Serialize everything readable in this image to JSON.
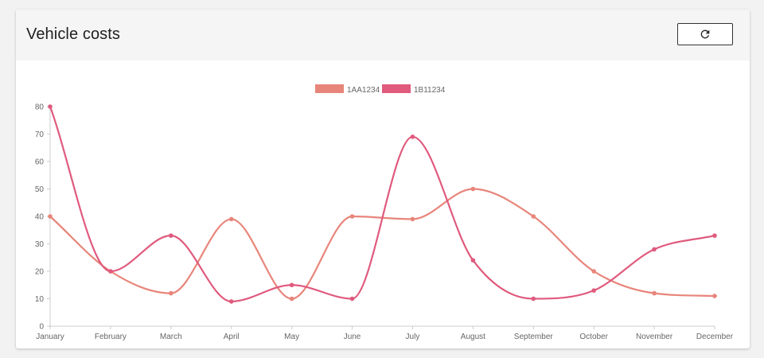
{
  "header": {
    "title": "Vehicle costs",
    "refresh_icon": "refresh-icon"
  },
  "colors": {
    "series_1": "#e8857a",
    "series_2": "#e05a7d",
    "axis": "#cccccc",
    "tick_text": "#666666"
  },
  "chart_data": {
    "type": "line",
    "categories": [
      "January",
      "February",
      "March",
      "April",
      "May",
      "June",
      "July",
      "August",
      "September",
      "October",
      "November",
      "December"
    ],
    "series": [
      {
        "name": "1AA1234",
        "values": [
          40,
          20,
          12,
          39,
          10,
          40,
          39,
          50,
          40,
          20,
          12,
          11
        ]
      },
      {
        "name": "1B11234",
        "values": [
          80,
          20,
          33,
          9,
          15,
          10,
          69,
          24,
          10,
          13,
          28,
          33
        ]
      }
    ],
    "ylim": [
      0,
      80
    ],
    "yticks": [
      0,
      10,
      20,
      30,
      40,
      50,
      60,
      70,
      80
    ],
    "grid": false,
    "legend": "top-center",
    "smooth": true
  }
}
